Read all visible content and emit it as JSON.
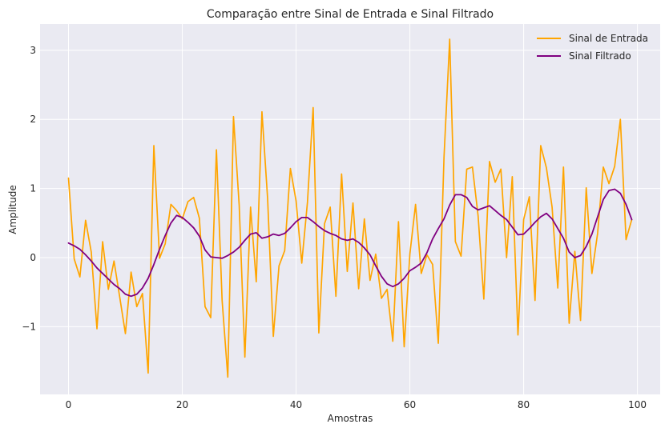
{
  "chart_data": {
    "type": "line",
    "title": "Comparação entre Sinal de Entrada e Sinal Filtrado",
    "xlabel": "Amostras",
    "ylabel": "Amplitude",
    "xlim": [
      -5,
      104
    ],
    "ylim": [
      -1.98,
      3.38
    ],
    "xticks": [
      0,
      20,
      40,
      60,
      80,
      100
    ],
    "yticks": [
      -1,
      0,
      1,
      2,
      3
    ],
    "ytick_labels": [
      "−1",
      "0",
      "1",
      "2",
      "3"
    ],
    "grid": true,
    "legend": "top-right",
    "series": [
      {
        "name": "Sinal de Entrada",
        "color": "#ffa500",
        "values": [
          1.15,
          -0.02,
          -0.28,
          0.54,
          0.08,
          -1.03,
          0.23,
          -0.46,
          -0.05,
          -0.57,
          -1.1,
          -0.21,
          -0.71,
          -0.52,
          -1.67,
          1.62,
          -0.01,
          0.2,
          0.77,
          0.68,
          0.56,
          0.81,
          0.87,
          0.57,
          -0.71,
          -0.87,
          1.56,
          -0.62,
          -1.73,
          2.04,
          0.76,
          -1.44,
          0.73,
          -0.35,
          2.11,
          0.85,
          -1.14,
          -0.12,
          0.1,
          1.29,
          0.82,
          -0.08,
          0.8,
          2.17,
          -1.09,
          0.49,
          0.73,
          -0.56,
          1.21,
          -0.2,
          0.79,
          -0.45,
          0.56,
          -0.33,
          0.05,
          -0.59,
          -0.46,
          -1.21,
          0.52,
          -1.29,
          0.05,
          0.77,
          -0.23,
          0.04,
          -0.1,
          -1.24,
          1.45,
          3.16,
          0.23,
          0.02,
          1.28,
          1.31,
          0.6,
          -0.6,
          1.39,
          1.09,
          1.28,
          0.0,
          1.17,
          -1.12,
          0.55,
          0.88,
          -0.62,
          1.62,
          1.3,
          0.73,
          -0.44,
          1.31,
          -0.95,
          0.09,
          -0.91,
          1.01,
          -0.23,
          0.35,
          1.31,
          1.07,
          1.32,
          2.0,
          0.26,
          0.55
        ]
      },
      {
        "name": "Sinal Filtrado",
        "color": "#800080",
        "values": [
          0.21,
          0.17,
          0.12,
          0.04,
          -0.05,
          -0.15,
          -0.23,
          -0.31,
          -0.39,
          -0.45,
          -0.53,
          -0.56,
          -0.53,
          -0.44,
          -0.3,
          -0.1,
          0.12,
          0.32,
          0.5,
          0.61,
          0.58,
          0.51,
          0.43,
          0.31,
          0.11,
          0.01,
          0.0,
          -0.01,
          0.03,
          0.08,
          0.15,
          0.25,
          0.34,
          0.36,
          0.28,
          0.3,
          0.34,
          0.32,
          0.35,
          0.43,
          0.52,
          0.58,
          0.58,
          0.52,
          0.45,
          0.39,
          0.35,
          0.32,
          0.27,
          0.25,
          0.27,
          0.22,
          0.14,
          0.04,
          -0.12,
          -0.27,
          -0.38,
          -0.42,
          -0.38,
          -0.3,
          -0.19,
          -0.14,
          -0.08,
          0.07,
          0.27,
          0.42,
          0.56,
          0.76,
          0.91,
          0.91,
          0.87,
          0.74,
          0.69,
          0.72,
          0.75,
          0.68,
          0.61,
          0.55,
          0.44,
          0.33,
          0.34,
          0.42,
          0.51,
          0.59,
          0.64,
          0.56,
          0.42,
          0.28,
          0.08,
          0.0,
          0.03,
          0.16,
          0.34,
          0.59,
          0.84,
          0.97,
          0.99,
          0.93,
          0.77,
          0.55
        ]
      }
    ]
  }
}
